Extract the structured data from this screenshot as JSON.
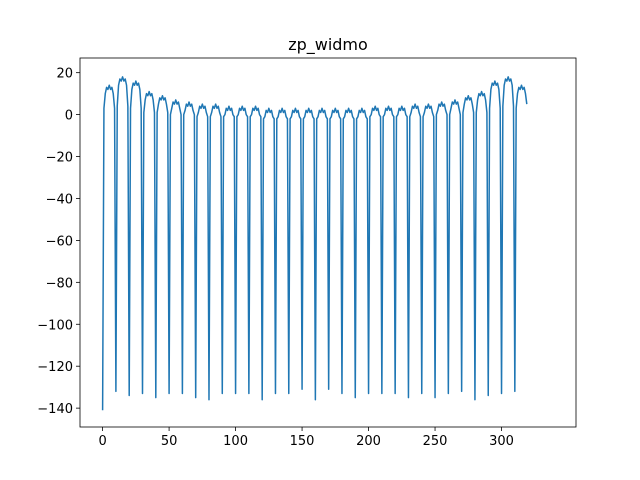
{
  "chart_data": {
    "type": "line",
    "title": "zp_widmo",
    "color": "#1f77b4",
    "xlim": [
      -17,
      356
    ],
    "xticks": [
      0,
      50,
      100,
      150,
      200,
      250,
      300
    ],
    "ylim": [
      -149,
      27
    ],
    "yticks": [
      {
        "value": -140,
        "label": "−140"
      },
      {
        "value": -120,
        "label": "−120"
      },
      {
        "value": -100,
        "label": "−100"
      },
      {
        "value": -80,
        "label": "−80"
      },
      {
        "value": -60,
        "label": "−60"
      },
      {
        "value": -40,
        "label": "−40"
      },
      {
        "value": -20,
        "label": "−20"
      },
      0,
      20
    ],
    "x": [
      0,
      1,
      2,
      3,
      4,
      5,
      6,
      7,
      8,
      9,
      10,
      11,
      12,
      13,
      14,
      15,
      16,
      17,
      18,
      19,
      20,
      21,
      22,
      23,
      24,
      25,
      26,
      27,
      28,
      29,
      30,
      31,
      32,
      33,
      34,
      35,
      36,
      37,
      38,
      39,
      40,
      41,
      42,
      43,
      44,
      45,
      46,
      47,
      48,
      49,
      50,
      51,
      52,
      53,
      54,
      55,
      56,
      57,
      58,
      59,
      60,
      61,
      62,
      63,
      64,
      65,
      66,
      67,
      68,
      69,
      70,
      71,
      72,
      73,
      74,
      75,
      76,
      77,
      78,
      79,
      80,
      81,
      82,
      83,
      84,
      85,
      86,
      87,
      88,
      89,
      90,
      91,
      92,
      93,
      94,
      95,
      96,
      97,
      98,
      99,
      100,
      101,
      102,
      103,
      104,
      105,
      106,
      107,
      108,
      109,
      110,
      111,
      112,
      113,
      114,
      115,
      116,
      117,
      118,
      119,
      120,
      121,
      122,
      123,
      124,
      125,
      126,
      127,
      128,
      129,
      130,
      131,
      132,
      133,
      134,
      135,
      136,
      137,
      138,
      139,
      140,
      141,
      142,
      143,
      144,
      145,
      146,
      147,
      148,
      149,
      150,
      151,
      152,
      153,
      154,
      155,
      156,
      157,
      158,
      159,
      160,
      161,
      162,
      163,
      164,
      165,
      166,
      167,
      168,
      169,
      170,
      171,
      172,
      173,
      174,
      175,
      176,
      177,
      178,
      179,
      180,
      181,
      182,
      183,
      184,
      185,
      186,
      187,
      188,
      189,
      190,
      191,
      192,
      193,
      194,
      195,
      196,
      197,
      198,
      199,
      200,
      201,
      202,
      203,
      204,
      205,
      206,
      207,
      208,
      209,
      210,
      211,
      212,
      213,
      214,
      215,
      216,
      217,
      218,
      219,
      220,
      221,
      222,
      223,
      224,
      225,
      226,
      227,
      228,
      229,
      230,
      231,
      232,
      233,
      234,
      235,
      236,
      237,
      238,
      239,
      240,
      241,
      242,
      243,
      244,
      245,
      246,
      247,
      248,
      249,
      250,
      251,
      252,
      253,
      254,
      255,
      256,
      257,
      258,
      259,
      260,
      261,
      262,
      263,
      264,
      265,
      266,
      267,
      268,
      269,
      270,
      271,
      272,
      273,
      274,
      275,
      276,
      277,
      278,
      279,
      280,
      281,
      282,
      283,
      284,
      285,
      286,
      287,
      288,
      289,
      290,
      291,
      292,
      293,
      294,
      295,
      296,
      297,
      298,
      299,
      300,
      301,
      302,
      303,
      304,
      305,
      306,
      307,
      308,
      309,
      310,
      311,
      312,
      313,
      314,
      315,
      316,
      317,
      318,
      319
    ],
    "values": [
      -141,
      3,
      10,
      13,
      12,
      14,
      12,
      13,
      10,
      3,
      -132,
      4,
      14,
      17,
      16,
      18,
      16,
      17,
      14,
      4,
      -134,
      3,
      12,
      15,
      14,
      16,
      14,
      15,
      12,
      3,
      -133,
      1,
      7,
      10,
      9,
      11,
      9,
      10,
      7,
      1,
      -135,
      1,
      5,
      8,
      7,
      9,
      7,
      8,
      5,
      1,
      -133,
      0,
      3,
      6,
      5,
      7,
      5,
      6,
      3,
      0,
      -133,
      0,
      2,
      5,
      4,
      6,
      4,
      5,
      2,
      0,
      -135,
      -1,
      1,
      4,
      3,
      5,
      3,
      4,
      1,
      -1,
      -136,
      -1,
      1,
      4,
      3,
      5,
      3,
      4,
      1,
      -1,
      -133,
      -1,
      0,
      3,
      2,
      4,
      2,
      3,
      0,
      -1,
      -133,
      -1,
      0,
      3,
      2,
      4,
      2,
      3,
      0,
      -1,
      -133,
      -1,
      0,
      3,
      2,
      4,
      2,
      3,
      0,
      -1,
      -136,
      -2,
      -1,
      2,
      1,
      3,
      1,
      2,
      -1,
      -2,
      -133,
      -2,
      -1,
      2,
      1,
      3,
      1,
      2,
      -1,
      -2,
      -133,
      -2,
      -1,
      2,
      1,
      3,
      1,
      2,
      -1,
      -2,
      -131,
      -2,
      -1,
      2,
      1,
      3,
      1,
      2,
      -1,
      -2,
      -136,
      -2,
      -1,
      2,
      1,
      3,
      1,
      2,
      -1,
      -2,
      -131,
      -2,
      -1,
      2,
      1,
      3,
      1,
      2,
      -1,
      -2,
      -133,
      -2,
      -1,
      2,
      1,
      3,
      1,
      2,
      -1,
      -2,
      -135,
      -2,
      -1,
      2,
      1,
      3,
      1,
      2,
      -1,
      -2,
      -133,
      -1,
      0,
      3,
      2,
      4,
      2,
      3,
      0,
      -1,
      -133,
      -1,
      0,
      3,
      2,
      4,
      2,
      3,
      0,
      -1,
      -133,
      -1,
      0,
      3,
      2,
      4,
      2,
      3,
      0,
      -1,
      -135,
      -1,
      1,
      4,
      3,
      5,
      3,
      4,
      1,
      -1,
      -133,
      -1,
      1,
      4,
      3,
      5,
      3,
      4,
      1,
      -1,
      -135,
      0,
      2,
      5,
      4,
      6,
      4,
      5,
      2,
      0,
      -133,
      0,
      3,
      6,
      5,
      7,
      5,
      6,
      3,
      0,
      -132,
      1,
      5,
      8,
      7,
      9,
      7,
      8,
      5,
      1,
      -136,
      1,
      7,
      10,
      9,
      11,
      9,
      10,
      7,
      1,
      -134,
      3,
      12,
      15,
      14,
      16,
      14,
      15,
      12,
      3,
      -133,
      4,
      14,
      17,
      16,
      18,
      16,
      17,
      14,
      4,
      -132,
      3,
      10,
      13,
      12,
      14,
      12,
      13,
      10,
      5
    ]
  }
}
